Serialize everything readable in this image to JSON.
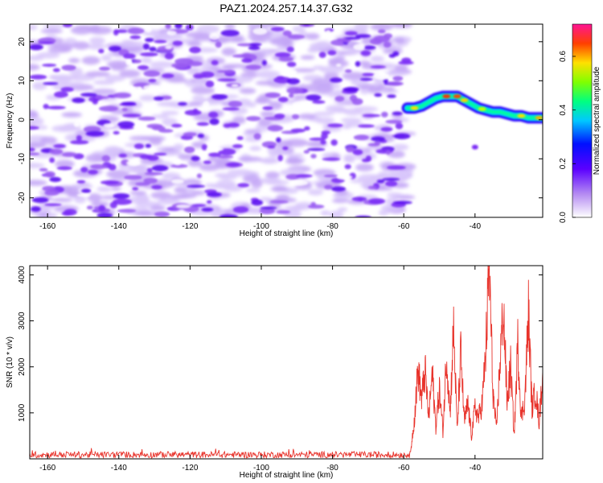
{
  "title": "PAZ1.2024.257.14.37.G32",
  "chart_data": [
    {
      "type": "heatmap",
      "title": "PAZ1.2024.257.14.37.G32",
      "xlabel": "Height of straight line (km)",
      "ylabel": "Frequency (Hz)",
      "xlim": [
        -165,
        -21
      ],
      "ylim": [
        -25,
        24.5
      ],
      "x_ticks": [
        -160,
        -140,
        -120,
        -100,
        -80,
        -60,
        -40
      ],
      "y_ticks": [
        -20,
        -10,
        0,
        10,
        20
      ],
      "noise_region_x": [
        -165,
        -59
      ],
      "ridge": [
        {
          "x": -59,
          "y": 3.0
        },
        {
          "x": -57,
          "y": 3.0
        },
        {
          "x": -55,
          "y": 3.5
        },
        {
          "x": -53,
          "y": 4.5
        },
        {
          "x": -51,
          "y": 5.5
        },
        {
          "x": -49,
          "y": 6.0
        },
        {
          "x": -47,
          "y": 6.0
        },
        {
          "x": -45,
          "y": 6.0
        },
        {
          "x": -43,
          "y": 5.0
        },
        {
          "x": -41,
          "y": 4.0
        },
        {
          "x": -39,
          "y": 3.0
        },
        {
          "x": -37,
          "y": 2.5
        },
        {
          "x": -35,
          "y": 2.0
        },
        {
          "x": -33,
          "y": 2.0
        },
        {
          "x": -31,
          "y": 1.5
        },
        {
          "x": -29,
          "y": 1.0
        },
        {
          "x": -27,
          "y": 1.0
        },
        {
          "x": -25,
          "y": 0.5
        },
        {
          "x": -23,
          "y": 0.5
        },
        {
          "x": -21,
          "y": 0.5
        }
      ],
      "colorbar": {
        "label": "Normalized spectral amplitude",
        "range": [
          0.0,
          0.72
        ],
        "ticks": [
          0.0,
          0.2,
          0.4,
          0.6
        ]
      }
    },
    {
      "type": "line",
      "xlabel": "Height of straight line (km)",
      "ylabel": "SNR (10 * v/v)",
      "xlim": [
        -165,
        -21
      ],
      "ylim": [
        0,
        4200
      ],
      "x_ticks": [
        -160,
        -140,
        -120,
        -100,
        -80,
        -60,
        -40
      ],
      "y_ticks": [
        1000,
        2000,
        3000,
        4000
      ],
      "line_color": "#e8332b",
      "baseline_until_x": -58,
      "baseline_level": [
        20,
        160
      ],
      "keypoints": [
        {
          "x": -58,
          "y": 200
        },
        {
          "x": -57,
          "y": 900
        },
        {
          "x": -56,
          "y": 1950
        },
        {
          "x": -55,
          "y": 1300
        },
        {
          "x": -54,
          "y": 1900
        },
        {
          "x": -53,
          "y": 900
        },
        {
          "x": -52,
          "y": 1850
        },
        {
          "x": -51,
          "y": 700
        },
        {
          "x": -50,
          "y": 1500
        },
        {
          "x": -49,
          "y": 600
        },
        {
          "x": -48,
          "y": 2300
        },
        {
          "x": -47,
          "y": 1000
        },
        {
          "x": -46,
          "y": 2850
        },
        {
          "x": -45,
          "y": 600
        },
        {
          "x": -44,
          "y": 2300
        },
        {
          "x": -43,
          "y": 800
        },
        {
          "x": -42,
          "y": 1200
        },
        {
          "x": -41,
          "y": 500
        },
        {
          "x": -40,
          "y": 1100
        },
        {
          "x": -39,
          "y": 900
        },
        {
          "x": -38,
          "y": 1200
        },
        {
          "x": -37,
          "y": 2300
        },
        {
          "x": -36,
          "y": 4200
        },
        {
          "x": -35,
          "y": 1500
        },
        {
          "x": -34,
          "y": 600
        },
        {
          "x": -33,
          "y": 2100
        },
        {
          "x": -32,
          "y": 3300
        },
        {
          "x": -31,
          "y": 1200
        },
        {
          "x": -30,
          "y": 2000
        },
        {
          "x": -29,
          "y": 500
        },
        {
          "x": -28,
          "y": 2500
        },
        {
          "x": -27,
          "y": 900
        },
        {
          "x": -26,
          "y": 1300
        },
        {
          "x": -25,
          "y": 3200
        },
        {
          "x": -24,
          "y": 1100
        },
        {
          "x": -23,
          "y": 1500
        },
        {
          "x": -22,
          "y": 800
        },
        {
          "x": -21,
          "y": 1900
        }
      ]
    }
  ]
}
